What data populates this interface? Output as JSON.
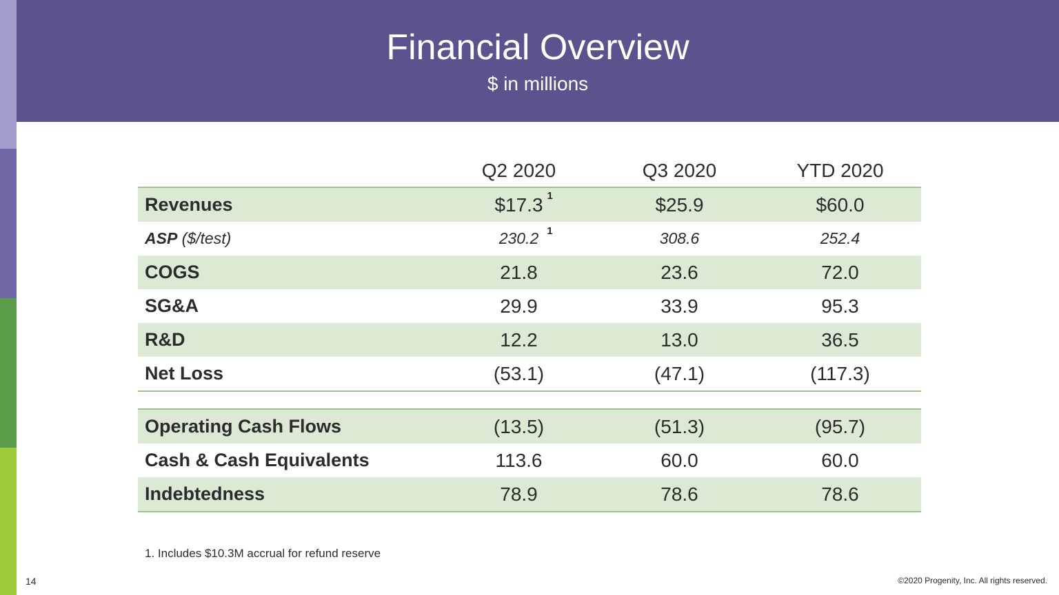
{
  "slide": {
    "title": "Financial Overview",
    "subtitle": "$ in millions",
    "page_number": "14",
    "footnote": "1. Includes $10.3M accrual for refund reserve",
    "copyright": "©2020 Progenity, Inc. All rights reserved.",
    "colors": {
      "header_bg": "#5c528e",
      "row_shade": "#dce9d5",
      "rule": "#9cc58d",
      "side_bars": [
        "#a29fcf",
        "#6f67a6",
        "#5b9c48",
        "#9ccb3b"
      ]
    }
  },
  "table": {
    "headers": [
      "Q2 2020",
      "Q3 2020",
      "YTD 2020"
    ],
    "rows": [
      {
        "label": "Revenues",
        "values": [
          "$17.3",
          "$25.9",
          "$60.0"
        ],
        "q2_footnote": "1"
      },
      {
        "label": "ASP",
        "label_suffix": " ($/test)",
        "values": [
          "230.2",
          "308.6",
          "252.4"
        ],
        "q2_footnote": "1"
      },
      {
        "label": "COGS",
        "values": [
          "21.8",
          "23.6",
          "72.0"
        ]
      },
      {
        "label": "SG&A",
        "values": [
          "29.9",
          "33.9",
          "95.3"
        ]
      },
      {
        "label": "R&D",
        "values": [
          "12.2",
          "13.0",
          "36.5"
        ]
      },
      {
        "label": "Net Loss",
        "values": [
          "(53.1)",
          "(47.1)",
          "(117.3)"
        ]
      },
      {
        "label": "Operating Cash Flows",
        "values": [
          "(13.5)",
          "(51.3)",
          "(95.7)"
        ]
      },
      {
        "label": "Cash & Cash Equivalents",
        "values": [
          "113.6",
          "60.0",
          "60.0"
        ]
      },
      {
        "label": "Indebtedness",
        "values": [
          "78.9",
          "78.6",
          "78.6"
        ]
      }
    ]
  }
}
